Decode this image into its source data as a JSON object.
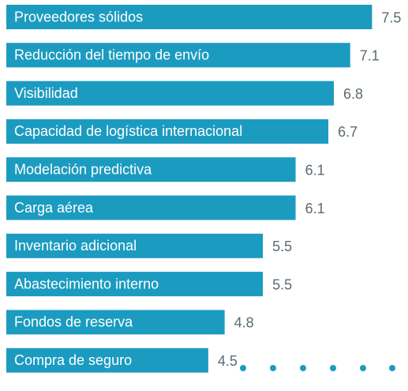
{
  "chart_data": {
    "type": "bar",
    "orientation": "horizontal",
    "categories": [
      "Proveedores sólidos",
      "Reducción del tiempo de envío",
      "Visibilidad",
      "Capacidad de logística internacional",
      "Modelación predictiva",
      "Carga aérea",
      "Inventario adicional",
      "Abastecimiento interno",
      "Fondos de reserva",
      "Compra de seguro"
    ],
    "values": [
      7.5,
      7.1,
      6.8,
      6.7,
      6.1,
      6.1,
      5.5,
      5.5,
      4.8,
      4.5
    ],
    "color": "#1c9bc0",
    "xlim": [
      0.8,
      8
    ]
  }
}
